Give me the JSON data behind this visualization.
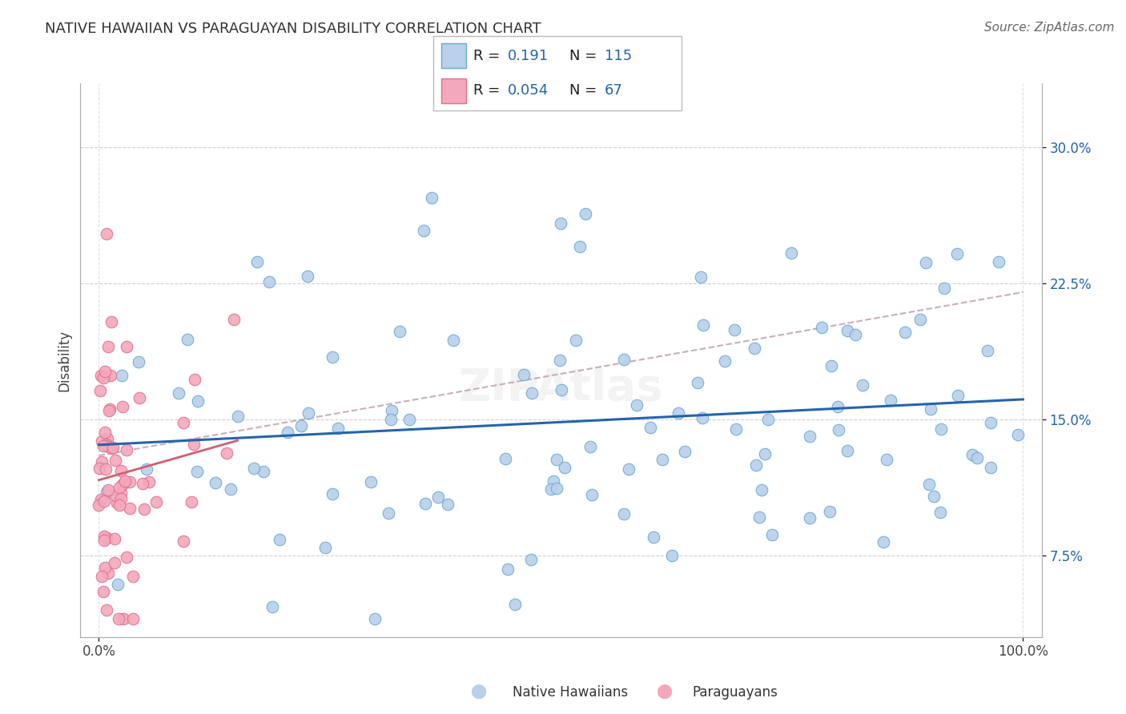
{
  "title": "NATIVE HAWAIIAN VS PARAGUAYAN DISABILITY CORRELATION CHART",
  "source": "Source: ZipAtlas.com",
  "ylabel": "Disability",
  "yticks": [
    0.075,
    0.15,
    0.225,
    0.3
  ],
  "ytick_labels": [
    "7.5%",
    "15.0%",
    "22.5%",
    "30.0%"
  ],
  "xlim": [
    -0.02,
    1.02
  ],
  "ylim": [
    0.03,
    0.335
  ],
  "hawaiian_color": "#b8d0ea",
  "paraguayan_color": "#f4a8bc",
  "hawaiian_edge": "#6aaad4",
  "paraguayan_edge": "#e07090",
  "trend_hawaiian_color": "#2464AE",
  "trend_paraguayan_color": "#d06070",
  "trend_overall_color": "#c0a0b0",
  "legend_R1": "0.191",
  "legend_N1": "115",
  "legend_R2": "0.054",
  "legend_N2": "67",
  "legend_label1": "Native Hawaiians",
  "legend_label2": "Paraguayans",
  "legend_value_color": "#2464AE",
  "background_color": "#ffffff",
  "grid_color": "#cccccc",
  "title_color": "#333333",
  "title_fontsize": 13,
  "source_color": "#666666"
}
